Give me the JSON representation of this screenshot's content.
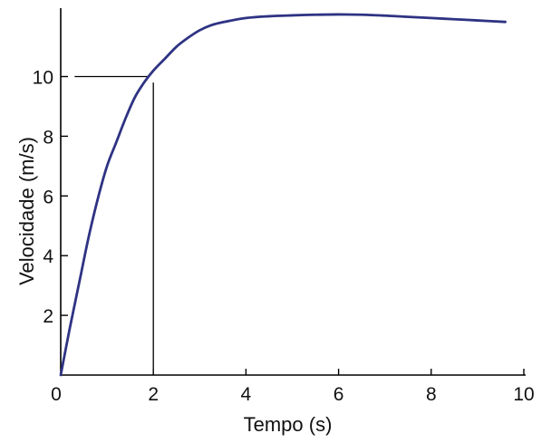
{
  "chart_data": {
    "type": "line",
    "title": "",
    "xlabel": "Tempo (s)",
    "ylabel": "Velocidade (m/s)",
    "xlim": [
      0,
      10
    ],
    "ylim": [
      0,
      12.2
    ],
    "x_ticks": [
      0,
      2,
      4,
      6,
      8,
      10
    ],
    "x_tick_labels": [
      "0",
      "2",
      "4",
      "6",
      "8",
      "10"
    ],
    "y_ticks": [
      2,
      4,
      6,
      8,
      10
    ],
    "y_tick_labels": [
      "2",
      "4",
      "6",
      "8",
      "10"
    ],
    "grid": false,
    "series": [
      {
        "x": [
          0,
          0.2,
          0.4,
          0.6,
          0.8,
          1.0,
          1.2,
          1.4,
          1.6,
          1.8,
          2.0,
          2.25,
          2.5,
          2.75,
          3.0,
          3.25,
          3.5,
          4.0,
          4.5,
          5.0,
          5.5,
          6.0,
          6.5,
          7.0,
          7.5,
          8.0,
          8.5,
          9.0,
          9.6
        ],
        "y": [
          0,
          1.6,
          3.1,
          4.6,
          5.9,
          7.0,
          7.8,
          8.6,
          9.3,
          9.8,
          10.2,
          10.6,
          11.0,
          11.3,
          11.55,
          11.72,
          11.82,
          11.96,
          12.02,
          12.05,
          12.07,
          12.08,
          12.07,
          12.04,
          12.0,
          11.96,
          11.92,
          11.88,
          11.83
        ],
        "color": "#2e3383"
      }
    ],
    "annotations": [
      {
        "type": "hline",
        "y": 10.0,
        "x_from": 0.3,
        "x_to": 1.9,
        "color": "#000000"
      },
      {
        "type": "vline",
        "x": 2.0,
        "y_from": 0.2,
        "y_to": 9.8,
        "color": "#000000"
      }
    ],
    "axis_color": "#000000"
  }
}
